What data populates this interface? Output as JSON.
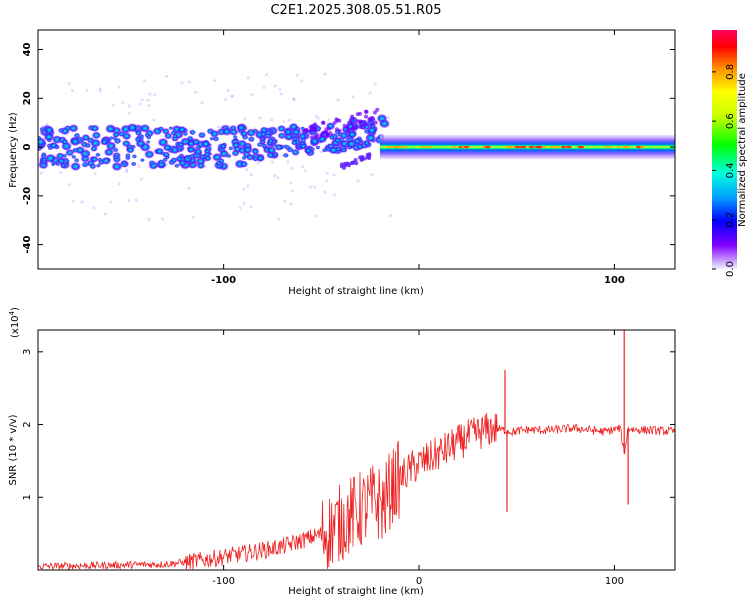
{
  "title": "C2E1.2025.308.05.51.R05",
  "chart_data": [
    {
      "type": "heatmap",
      "name": "spectrogram",
      "xlabel": "Height of straight line (km)",
      "ylabel": "Frequency (Hz)",
      "xlim": [
        -195,
        131
      ],
      "ylim": [
        -50,
        48
      ],
      "xticks": [
        -100,
        0,
        100
      ],
      "xtick_labels": [
        "-100",
        "",
        "100"
      ],
      "yticks": [
        -40,
        -20,
        0,
        20,
        40
      ],
      "ytick_labels": [
        "-40",
        "-20",
        "0",
        "20",
        "40"
      ],
      "description_bands": [
        {
          "x_start": -195,
          "x_end": -20,
          "center_hz": 0,
          "spread_hz": 10,
          "peak_amplitude": 0.45
        },
        {
          "x_start": -20,
          "x_end": 131,
          "center_hz": 0,
          "spread_hz": 3,
          "peak_amplitude": 0.95
        }
      ],
      "colorbar": {
        "label": "Normalized spectral amplitude",
        "range": [
          0,
          0.97
        ],
        "ticks": [
          0.0,
          0.2,
          0.4,
          0.6,
          0.8
        ],
        "tick_labels": [
          "0.0",
          "0.2",
          "0.4",
          "0.6",
          "0.8"
        ],
        "colors": [
          "#f0f0ff",
          "#7a00ff",
          "#0000ff",
          "#00b0ff",
          "#00ffe0",
          "#00ff00",
          "#c8ff00",
          "#ffff00",
          "#ff9000",
          "#ff0000",
          "#ff0060"
        ]
      }
    },
    {
      "type": "line",
      "name": "snr",
      "xlabel": "Height of straight line (km)",
      "ylabel": "SNR (10 * v/v)",
      "multiplier": "(x10",
      "multiplier_exp": "4",
      "multiplier_close": ")",
      "xlim": [
        -195,
        131
      ],
      "ylim": [
        0,
        3.3
      ],
      "xticks": [
        -100,
        0,
        100
      ],
      "xtick_labels": [
        "-100",
        "0",
        "100"
      ],
      "yticks": [
        1,
        2,
        3
      ],
      "ytick_labels": [
        "1",
        "2",
        "3"
      ],
      "color": "#ee2222",
      "series": [
        {
          "name": "SNR",
          "x": [
            -195,
            -170,
            -150,
            -130,
            -115,
            -100,
            -85,
            -70,
            -55,
            -45,
            -35,
            -28,
            -22,
            -18,
            -15,
            -12,
            -8,
            -3,
            3,
            10,
            18,
            25,
            32,
            38,
            44,
            48,
            55,
            65,
            80,
            95,
            103,
            105,
            107,
            110,
            120,
            131
          ],
          "y": [
            0.05,
            0.06,
            0.07,
            0.08,
            0.12,
            0.18,
            0.25,
            0.32,
            0.45,
            0.55,
            0.75,
            0.85,
            0.95,
            0.88,
            1.1,
            1.2,
            1.3,
            1.42,
            1.5,
            1.6,
            1.72,
            1.82,
            1.9,
            1.95,
            1.92,
            1.9,
            1.93,
            1.92,
            1.95,
            1.9,
            1.95,
            1.6,
            1.95,
            1.93,
            1.92,
            1.9
          ]
        }
      ],
      "annotations": [
        {
          "x": 44,
          "y": 2.75,
          "kind": "spike"
        },
        {
          "x": 45,
          "y": 0.8,
          "kind": "dip"
        },
        {
          "x": 105,
          "y": 3.3,
          "kind": "spike"
        },
        {
          "x": 107,
          "y": 0.9,
          "kind": "dip"
        }
      ]
    }
  ]
}
